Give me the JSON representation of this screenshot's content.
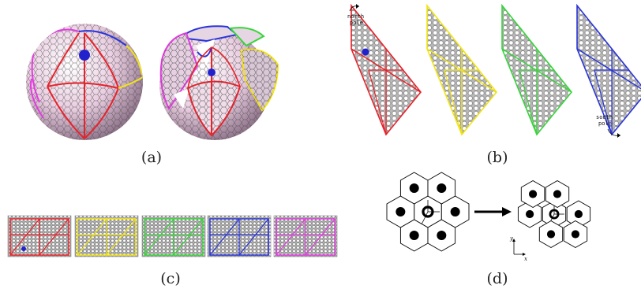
{
  "panels": {
    "a": {
      "label": "(a)"
    },
    "b": {
      "label": "(b)",
      "north_label_1": "north",
      "north_label_2": "pole",
      "south_label_1": "south",
      "south_label_2": "pole"
    },
    "c": {
      "label": "(c)"
    },
    "d": {
      "label": "(d)",
      "axis_y": "y",
      "axis_x": "x"
    }
  },
  "colors": {
    "strips": [
      "#e8222a",
      "#f2e512",
      "#37d63a",
      "#2a35d8",
      "#e23ce0"
    ],
    "marker": "#2222cc",
    "sphere_fill": "#eccfe0",
    "mesh": "#555555"
  }
}
